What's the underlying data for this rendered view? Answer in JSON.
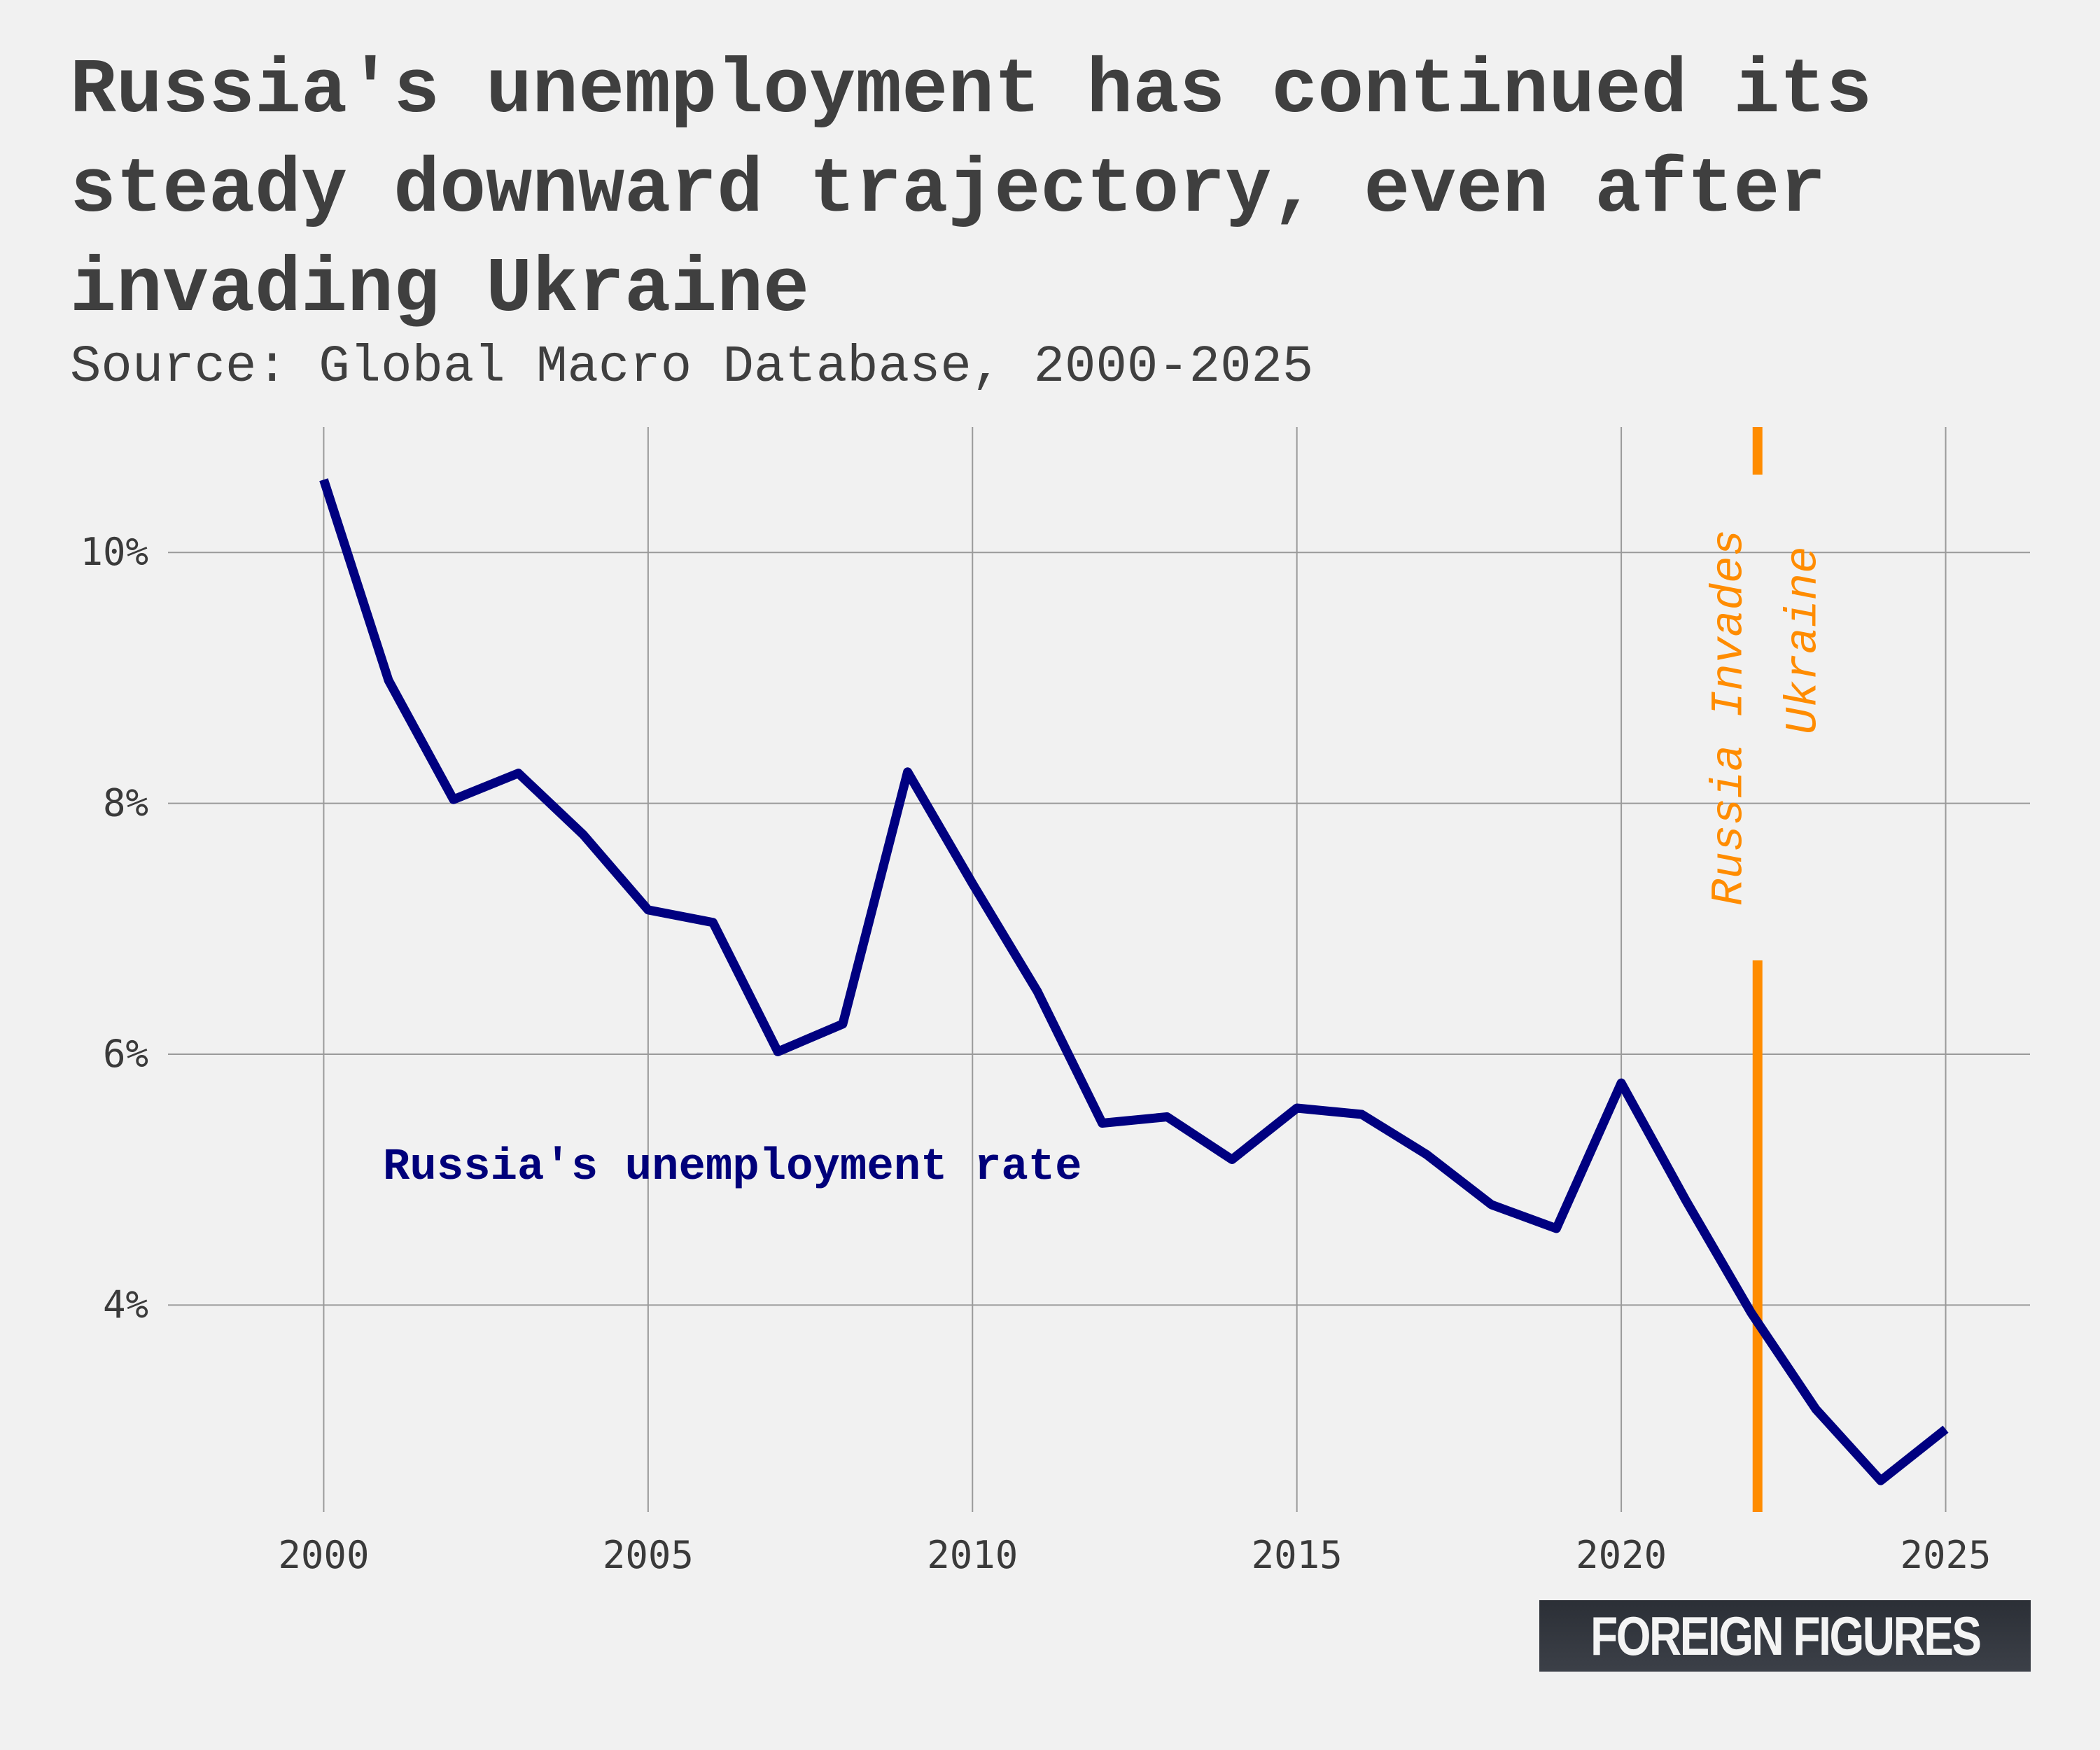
{
  "title": "Russia's unemployment has continued its steady downward trajectory, even after invading Ukraine",
  "subtitle": "Source: Global Macro Database, 2000-2025",
  "logo_text": "FOREIGN FIGURES",
  "colors": {
    "series": "#000080",
    "event": "#ff8c00",
    "grid": "#9a9a9a",
    "background": "#f1f1f1"
  },
  "chart_data": {
    "type": "line",
    "title": "Russia's unemployment has continued its steady downward trajectory, even after invading Ukraine",
    "xlabel": "",
    "ylabel": "",
    "xlim": [
      1997.6,
      2026.3
    ],
    "ylim": [
      2.35,
      11.0
    ],
    "x_ticks": [
      2000,
      2005,
      2010,
      2015,
      2020,
      2025
    ],
    "y_ticks": [
      4,
      6,
      8,
      10
    ],
    "y_tick_labels": [
      "4%",
      "6%",
      "8%",
      "10%"
    ],
    "grid": true,
    "legend": "none",
    "series": [
      {
        "name": "Russia's unemployment rate",
        "x": [
          2000,
          2001,
          2002,
          2003,
          2004,
          2005,
          2006,
          2007,
          2008,
          2009,
          2010,
          2011,
          2012,
          2013,
          2014,
          2015,
          2016,
          2017,
          2018,
          2019,
          2020,
          2021,
          2022,
          2023,
          2024,
          2025
        ],
        "values": [
          10.58,
          8.98,
          8.03,
          8.24,
          7.75,
          7.15,
          7.05,
          6.02,
          6.24,
          8.25,
          7.36,
          6.5,
          5.45,
          5.5,
          5.16,
          5.57,
          5.52,
          5.2,
          4.8,
          4.61,
          5.77,
          4.83,
          3.94,
          3.17,
          2.6,
          3.01
        ]
      }
    ],
    "annotations": [
      {
        "type": "vline",
        "x": 2022.1,
        "label_line1": "Russia Invades",
        "label_line2": "Ukraine"
      }
    ]
  }
}
